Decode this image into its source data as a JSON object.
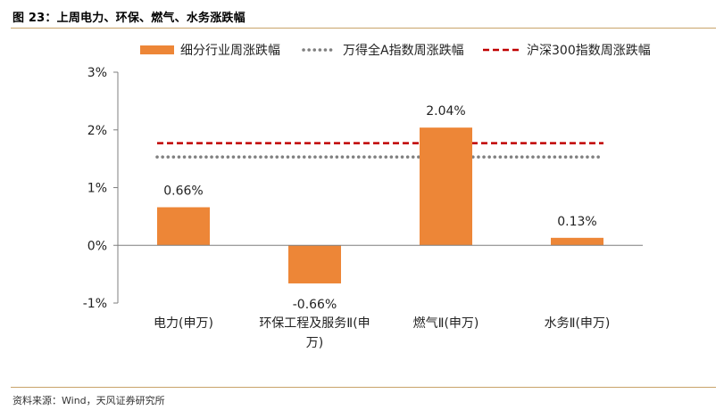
{
  "figure": {
    "title": "图 23：上周电力、环保、燃气、水务涨跌幅",
    "source": "资料来源：Wind，天风证券研究所"
  },
  "chart_data": {
    "type": "bar",
    "categories": [
      "电力(申万)",
      "环保工程及服务Ⅱ(申万)",
      "燃气Ⅱ(申万)",
      "水务Ⅱ(申万)"
    ],
    "category_lines": [
      [
        "电力(申万)"
      ],
      [
        "环保工程及服务Ⅱ(申",
        "万)"
      ],
      [
        "燃气Ⅱ(申万)"
      ],
      [
        "水务Ⅱ(申万)"
      ]
    ],
    "series": [
      {
        "name": "细分行业周涨跌幅",
        "values": [
          0.66,
          -0.66,
          2.04,
          0.13
        ],
        "labels": [
          "0.66%",
          "-0.66%",
          "2.04%",
          "0.13%"
        ],
        "color": "#ED8637"
      }
    ],
    "reference_lines": [
      {
        "name": "万得全A指数周涨跌幅",
        "value": 1.53,
        "color": "#7f7f7f",
        "style": "dotted"
      },
      {
        "name": "沪深300指数周涨跌幅",
        "value": 1.77,
        "color": "#C00000",
        "style": "dashed"
      }
    ],
    "ylim": [
      -1,
      3
    ],
    "yticks": [
      -1,
      0,
      1,
      2,
      3
    ],
    "ytick_labels": [
      "-1%",
      "0%",
      "1%",
      "2%",
      "3%"
    ],
    "xlabel": "",
    "ylabel": "",
    "grid": false,
    "legend": "top"
  }
}
